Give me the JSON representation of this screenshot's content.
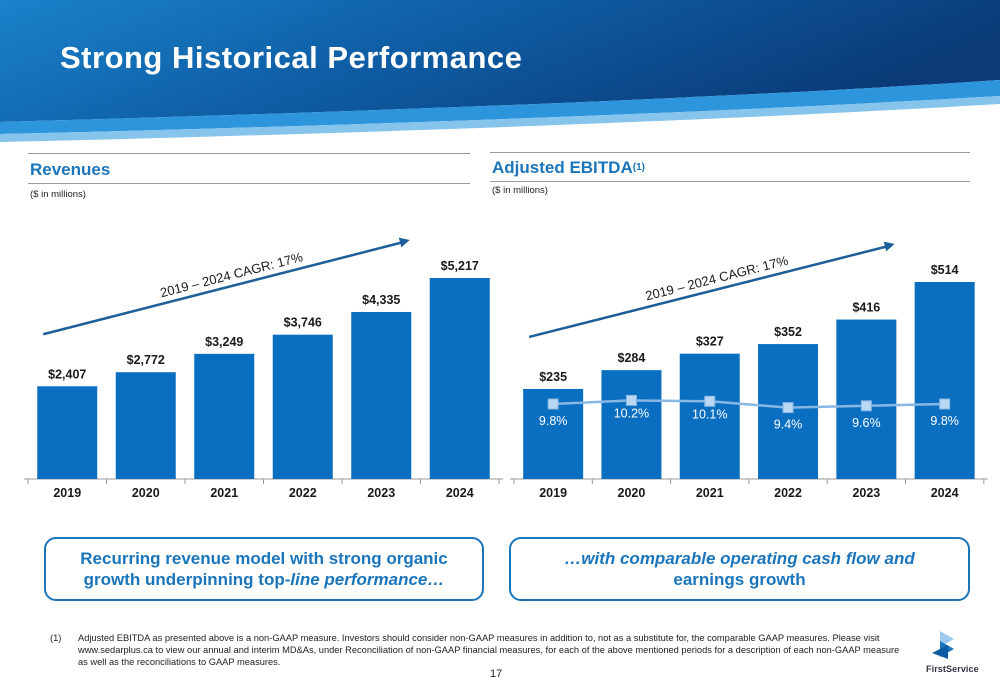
{
  "slide": {
    "title": "Strong Historical Performance",
    "page_number": "17",
    "brand": "FirstService"
  },
  "colors": {
    "bar": "#0b6fc1",
    "accent": "#1b75bb",
    "arrow": "#1e5f9a",
    "margin_line": "#87b7e3",
    "banner_dark": "#0a3d7a",
    "banner_light": "#1f86cf"
  },
  "revenues": {
    "heading": "Revenues",
    "units": "($ in millions)",
    "cagr_label": "2019 – 2024 CAGR: 17%",
    "callout": {
      "line1": "Recurring revenue model with strong organic",
      "line2a": "growth underpinning top-",
      "line2b": "line performance…"
    }
  },
  "ebitda": {
    "heading": "Adjusted EBITDA",
    "heading_sup": "(1)",
    "units": "($ in millions)",
    "cagr_label": "2019 – 2024 CAGR: 17%",
    "callout": {
      "line1": "…with comparable operating cash flow and",
      "line2": "earnings growth"
    }
  },
  "footnote": {
    "mark": "(1)",
    "text": "Adjusted EBITDA as presented above is a non-GAAP measure. Investors should consider non-GAAP measures in addition to, not as a substitute for, the comparable GAAP measures. Please visit www.sedarplus.ca to view our annual and interim MD&As, under Reconciliation of non-GAAP financial measures, for each of the above mentioned periods for a description of each non-GAAP measure as well as the reconciliations to GAAP measures."
  },
  "chart_data": [
    {
      "id": "revenues",
      "type": "bar",
      "categories": [
        "2019",
        "2020",
        "2021",
        "2022",
        "2023",
        "2024"
      ],
      "values": [
        2407,
        2772,
        3249,
        3746,
        4335,
        5217
      ],
      "value_labels": [
        "$2,407",
        "$2,772",
        "$3,249",
        "$3,746",
        "$4,335",
        "$5,217"
      ],
      "title": "Revenues",
      "ylabel": "($ in millions)",
      "ylim": [
        0,
        5217
      ],
      "grid": false,
      "annotations": [
        "2019 – 2024 CAGR: 17%"
      ]
    },
    {
      "id": "ebitda",
      "type": "bar",
      "categories": [
        "2019",
        "2020",
        "2021",
        "2022",
        "2023",
        "2024"
      ],
      "values": [
        235,
        284,
        327,
        352,
        416,
        514
      ],
      "value_labels": [
        "$235",
        "$284",
        "$327",
        "$352",
        "$416",
        "$514"
      ],
      "title": "Adjusted EBITDA(1)",
      "ylabel": "($ in millions)",
      "ylim": [
        0,
        514
      ],
      "grid": false,
      "annotations": [
        "2019 – 2024 CAGR: 17%"
      ],
      "margin_series": {
        "type": "line",
        "values": [
          9.8,
          10.2,
          10.1,
          9.4,
          9.6,
          9.8
        ],
        "labels": [
          "9.8%",
          "10.2%",
          "10.1%",
          "9.4%",
          "9.6%",
          "9.8%"
        ]
      }
    }
  ]
}
